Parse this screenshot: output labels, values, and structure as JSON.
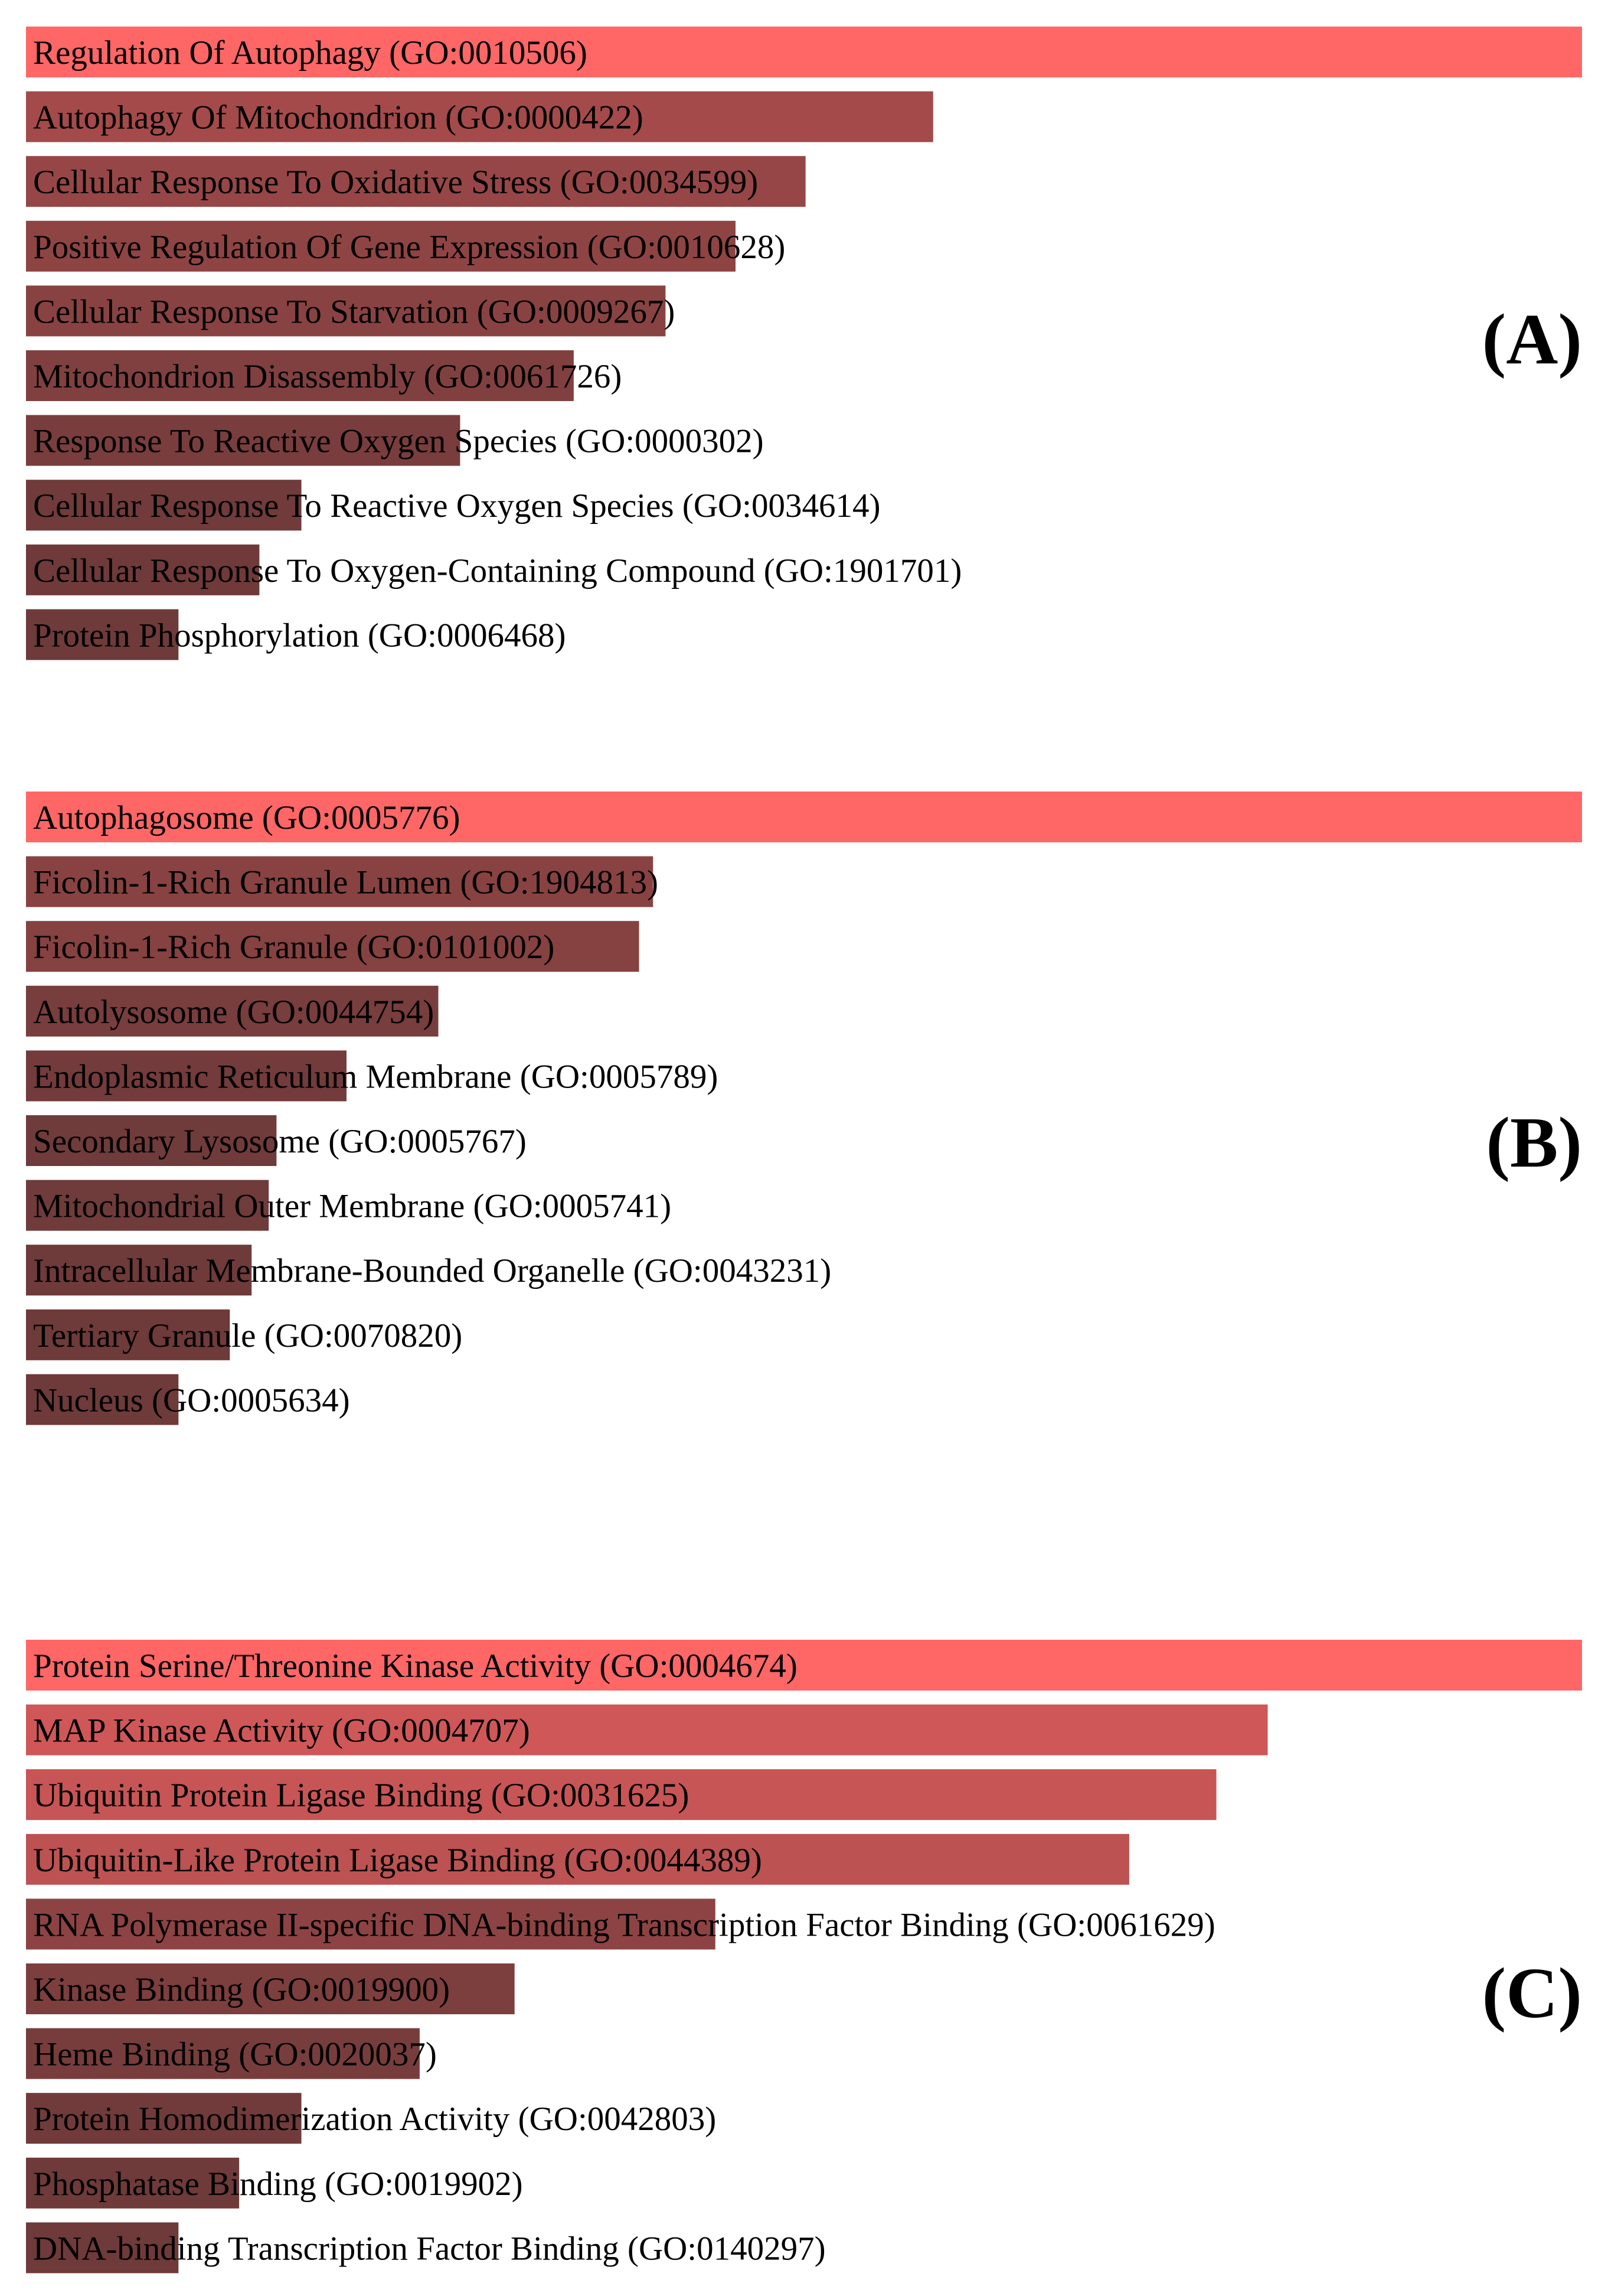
{
  "chart_data": [
    {
      "type": "bar",
      "orientation": "horizontal",
      "panel_label": "(A)",
      "value_scale": "relative enrichment score (top term = 1.0)",
      "colors": {
        "max": "#ff6666",
        "min": "#6e3a3a"
      },
      "categories": [
        "Regulation Of Autophagy (GO:0010506)",
        "Autophagy Of Mitochondrion (GO:0000422)",
        "Cellular Response To Oxidative Stress (GO:0034599)",
        "Positive Regulation Of Gene Expression (GO:0010628)",
        "Cellular Response To Starvation (GO:0009267)",
        "Mitochondrion Disassembly (GO:0061726)",
        "Response To Reactive Oxygen Species (GO:0000302)",
        "Cellular Response To Reactive Oxygen Species (GO:0034614)",
        "Cellular Response To Oxygen-Containing Compound (GO:1901701)",
        "Protein Phosphorylation (GO:0006468)"
      ],
      "values": [
        1.0,
        0.583,
        0.501,
        0.456,
        0.411,
        0.352,
        0.279,
        0.177,
        0.15,
        0.098
      ]
    },
    {
      "type": "bar",
      "orientation": "horizontal",
      "panel_label": "(B)",
      "value_scale": "relative enrichment score (top term = 1.0)",
      "colors": {
        "max": "#ff6666",
        "min": "#6e3a3a"
      },
      "categories": [
        "Autophagosome (GO:0005776)",
        "Ficolin-1-Rich Granule Lumen (GO:1904813)",
        "Ficolin-1-Rich Granule (GO:0101002)",
        "Autolysosome (GO:0044754)",
        "Endoplasmic Reticulum Membrane (GO:0005789)",
        "Secondary Lysosome (GO:0005767)",
        "Mitochondrial Outer Membrane (GO:0005741)",
        "Intracellular Membrane-Bounded Organelle (GO:0043231)",
        "Tertiary Granule (GO:0070820)",
        "Nucleus (GO:0005634)"
      ],
      "values": [
        1.0,
        0.403,
        0.394,
        0.265,
        0.206,
        0.161,
        0.156,
        0.145,
        0.131,
        0.098
      ]
    },
    {
      "type": "bar",
      "orientation": "horizontal",
      "panel_label": "(C)",
      "value_scale": "relative enrichment score (top term = 1.0)",
      "colors": {
        "max": "#ff6666",
        "min": "#6e3a3a"
      },
      "categories": [
        "Protein Serine/Threonine Kinase Activity (GO:0004674)",
        "MAP Kinase Activity (GO:0004707)",
        "Ubiquitin Protein Ligase Binding (GO:0031625)",
        "Ubiquitin-Like Protein Ligase Binding (GO:0044389)",
        "RNA Polymerase II-specific DNA-binding Transcription Factor Binding (GO:0061629)",
        "Kinase Binding (GO:0019900)",
        "Heme Binding (GO:0020037)",
        "Protein Homodimerization Activity (GO:0042803)",
        "Phosphatase Binding (GO:0019902)",
        "DNA-binding Transcription Factor Binding (GO:0140297)"
      ],
      "values": [
        1.0,
        0.798,
        0.765,
        0.709,
        0.443,
        0.314,
        0.253,
        0.177,
        0.137,
        0.098
      ]
    }
  ]
}
